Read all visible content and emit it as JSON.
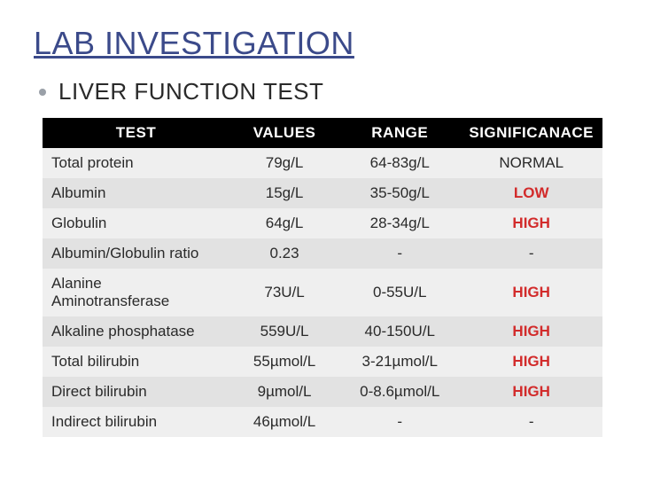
{
  "title": "LAB INVESTIGATION",
  "subtitle": "LIVER FUNCTION TEST",
  "table": {
    "columns": [
      "TEST",
      "VALUES",
      "RANGE",
      "SIGNIFICANACE"
    ],
    "rows": [
      {
        "test": "Total protein",
        "value": "79g/L",
        "range": "64-83g/L",
        "sig": "NORMAL",
        "sig_color": "normal"
      },
      {
        "test": "Albumin",
        "value": "15g/L",
        "range": "35-50g/L",
        "sig": "LOW",
        "sig_color": "red"
      },
      {
        "test": "Globulin",
        "value": "64g/L",
        "range": "28-34g/L",
        "sig": "HIGH",
        "sig_color": "red"
      },
      {
        "test": "Albumin/Globulin ratio",
        "value": "0.23",
        "range": "-",
        "sig": "-",
        "sig_color": "normal"
      },
      {
        "test": "Alanine Aminotransferase",
        "value": "73U/L",
        "range": "0-55U/L",
        "sig": "HIGH",
        "sig_color": "red"
      },
      {
        "test": "Alkaline phosphatase",
        "value": "559U/L",
        "range": "40-150U/L",
        "sig": "HIGH",
        "sig_color": "red"
      },
      {
        "test": "Total bilirubin",
        "value": "55µmol/L",
        "range": "3-21µmol/L",
        "sig": "HIGH",
        "sig_color": "red"
      },
      {
        "test": "Direct bilirubin",
        "value": "9µmol/L",
        "range": "0-8.6µmol/L",
        "sig": "HIGH",
        "sig_color": "red"
      },
      {
        "test": "Indirect bilirubin",
        "value": "46µmol/L",
        "range": "-",
        "sig": "-",
        "sig_color": "normal"
      }
    ]
  },
  "styling": {
    "title_color": "#3b4a8a",
    "header_bg": "#000000",
    "header_fg": "#ffffff",
    "row_odd_bg": "#efefef",
    "row_even_bg": "#e2e2e2",
    "sig_red": "#d22b2b",
    "body_fg": "#2a2a2a",
    "bullet_color": "#9aa0a8",
    "title_fontsize": 36,
    "subtitle_fontsize": 26,
    "cell_fontsize": 17
  }
}
